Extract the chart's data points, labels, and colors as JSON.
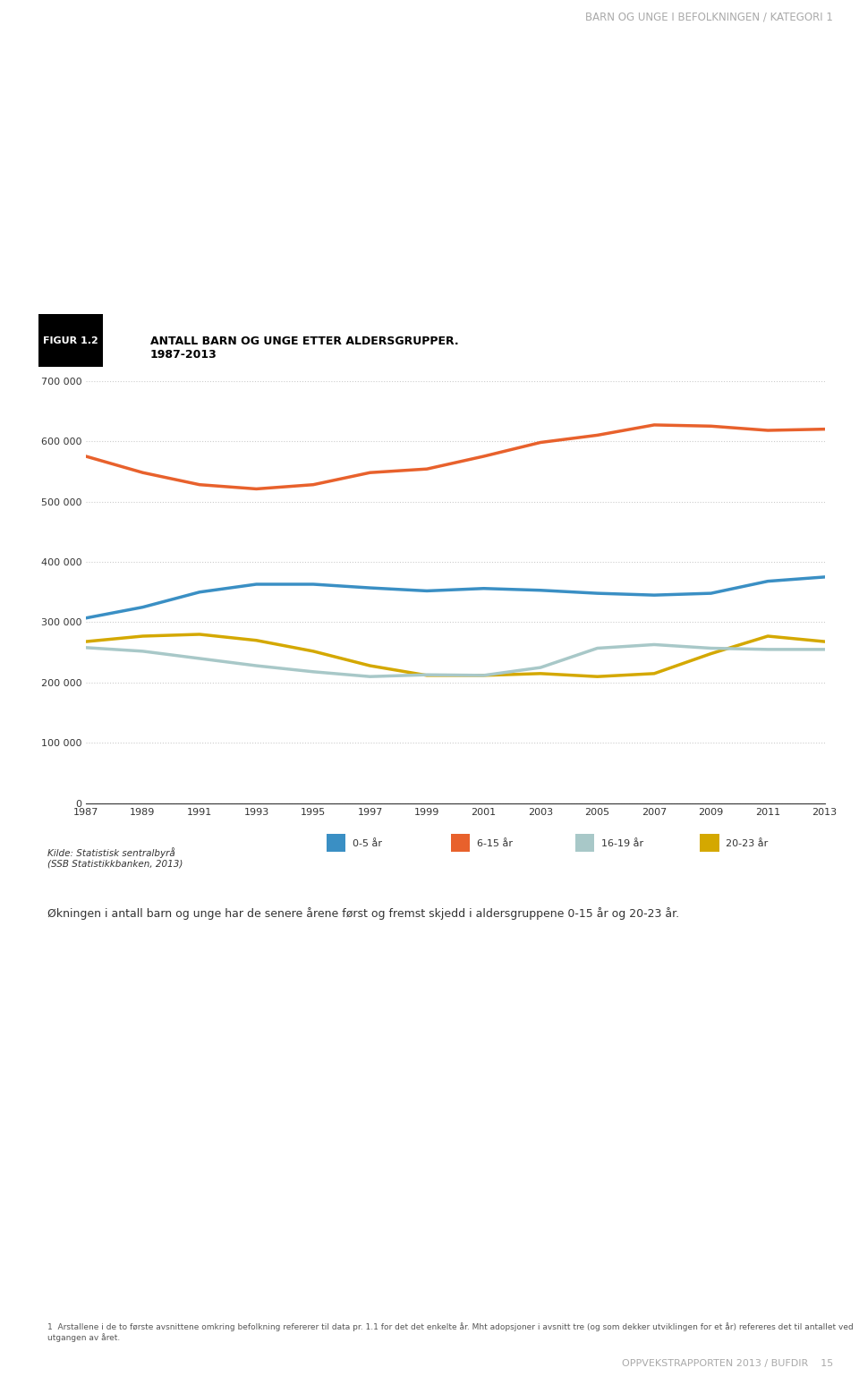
{
  "years": [
    1987,
    1989,
    1991,
    1993,
    1995,
    1997,
    1999,
    2001,
    2003,
    2005,
    2007,
    2009,
    2011,
    2013
  ],
  "series_6_15": [
    575000,
    548000,
    528000,
    521000,
    528000,
    548000,
    554000,
    575000,
    598000,
    610000,
    627000,
    625000,
    618000,
    620000
  ],
  "series_0_5": [
    307000,
    325000,
    350000,
    363000,
    363000,
    357000,
    352000,
    356000,
    353000,
    348000,
    345000,
    348000,
    368000,
    375000
  ],
  "series_20_23": [
    268000,
    277000,
    280000,
    270000,
    252000,
    228000,
    212000,
    212000,
    215000,
    210000,
    215000,
    248000,
    277000,
    268000
  ],
  "series_16_19": [
    258000,
    252000,
    240000,
    228000,
    218000,
    210000,
    213000,
    212000,
    225000,
    257000,
    263000,
    257000,
    255000,
    255000
  ],
  "color_6_15": "#E8612C",
  "color_0_5": "#3A8FC4",
  "color_20_23": "#D4A800",
  "color_16_19": "#A8C8C8",
  "header_text": "BARN OG UNGE I BEFOLKNINGEN / KATEGORI 1",
  "figur_label": "FIGUR 1.2",
  "title_line1": "ANTALL BARN OG UNGE ETTER ALDERSGRUPPER.",
  "title_line2": "1987-2013",
  "source_text": "Kilde: Statistisk sentralbyrå\n(SSB Statistikkbanken, 2013)",
  "legend_labels": [
    "0-5 år",
    "6-15 år",
    "16-19 år",
    "20-23 år"
  ],
  "body_text": "Økningen i antall barn og unge har de senere årene først og fremst skjedd i aldersgruppene 0-15 år og 20-23 år.",
  "footer_text": "1  Arstallene i de to første avsnittene omkring befolkning refererer til data pr. 1.1 for det det enkelte år. Mht adopsjoner i avsnitt tre (og som dekker utviklingen for et år) refereres det til antallet ved utgangen av året.",
  "page_text": "OPPVEKSTRAPPORTEN 2013 / BUFDIR    15",
  "ylim": [
    0,
    700000
  ],
  "yticks": [
    0,
    100000,
    200000,
    300000,
    400000,
    500000,
    600000,
    700000
  ],
  "background_color": "#FFFFFF"
}
